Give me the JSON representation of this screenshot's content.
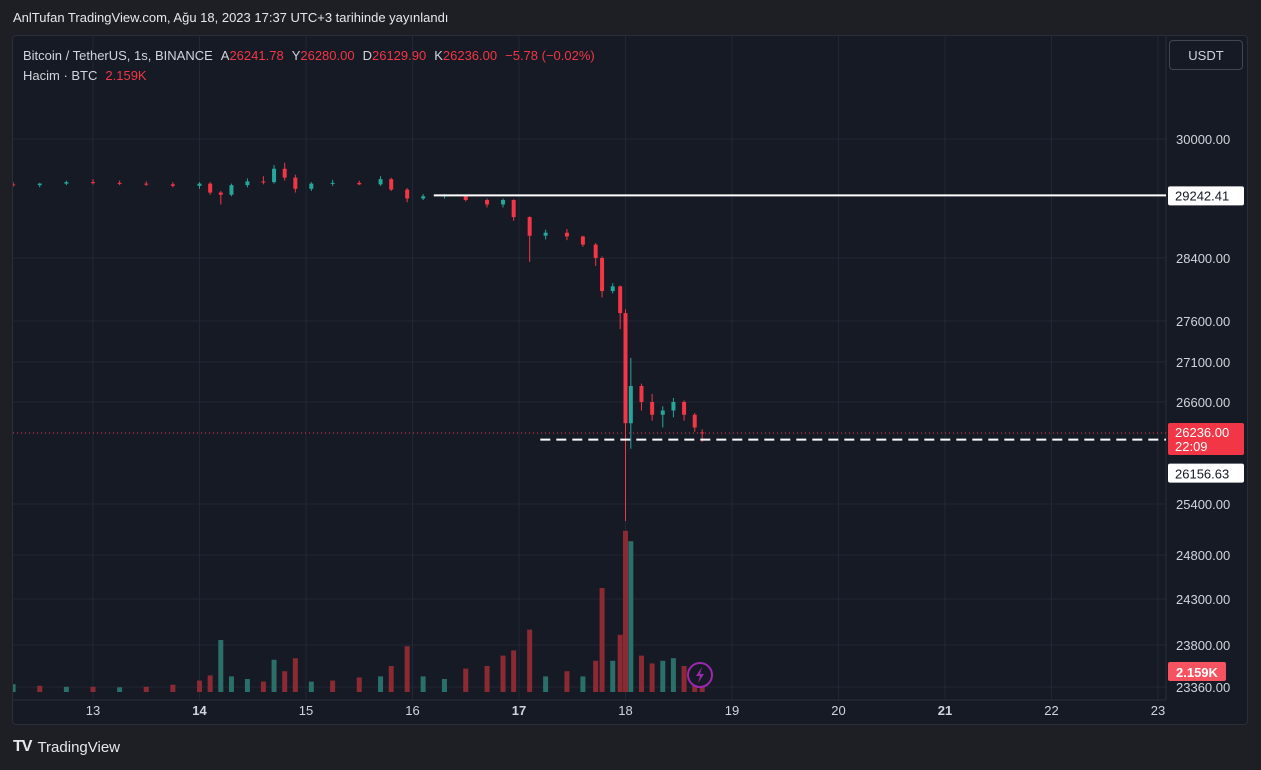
{
  "header": {
    "publish_line": "AnlTufan TradingView.com, Ağu 18, 2023 17:37 UTC+3 tarihinde yayınlandı"
  },
  "legend": {
    "symbol": "Bitcoin / TetherUS, 1s, BINANCE",
    "open_label": "A",
    "open_value": "26241.78",
    "high_label": "Y",
    "high_value": "26280.00",
    "low_label": "D",
    "low_value": "26129.90",
    "close_label": "K",
    "close_value": "26236.00",
    "change": "−5.78 (−0.02%)",
    "volume_label": "Hacim · BTC",
    "volume_value": "2.159K"
  },
  "toolbar": {
    "unit_label": "USDT"
  },
  "footer": {
    "brand": "TradingView",
    "brand_mark": "TV"
  },
  "colors": {
    "up": "#26a69a",
    "down": "#f23645",
    "vol_up": "#2a6f69",
    "vol_down": "#8b2a33",
    "grid": "#232735",
    "text": "#d1d4dc",
    "bg": "#161a25"
  },
  "chart_data": {
    "type": "candlestick",
    "x_ticks": [
      {
        "label": "13",
        "day": 13,
        "bold": false
      },
      {
        "label": "14",
        "day": 14,
        "bold": true
      },
      {
        "label": "15",
        "day": 15,
        "bold": false
      },
      {
        "label": "16",
        "day": 16,
        "bold": false
      },
      {
        "label": "17",
        "day": 17,
        "bold": true
      },
      {
        "label": "18",
        "day": 18,
        "bold": false
      },
      {
        "label": "19",
        "day": 19,
        "bold": false
      },
      {
        "label": "20",
        "day": 20,
        "bold": false
      },
      {
        "label": "21",
        "day": 21,
        "bold": true
      },
      {
        "label": "22",
        "day": 22,
        "bold": false
      },
      {
        "label": "23",
        "day": 23,
        "bold": false
      }
    ],
    "y_ticks": [
      "30000.00",
      "28400.00",
      "27600.00",
      "27100.00",
      "26600.00",
      "25400.00",
      "24800.00",
      "24300.00",
      "23800.00",
      "23360.00"
    ],
    "y_tick_values": [
      30000,
      28400,
      27600,
      27100,
      26600,
      25400,
      24800,
      24300,
      23800,
      23360
    ],
    "horizontal_line": {
      "value": 29242.41,
      "label": "29242.41",
      "from_day": 16.2
    },
    "dashed_line": {
      "value": 26156.63,
      "label": "26156.63",
      "from_day": 17.2
    },
    "last_price": {
      "value": 26236.0,
      "label": "26236.00",
      "countdown": "22:09"
    },
    "volume_last": {
      "label": "2.159K"
    },
    "candles": [
      {
        "d": 12.25,
        "o": 29390,
        "h": 29420,
        "l": 29360,
        "c": 29380
      },
      {
        "d": 12.5,
        "o": 29380,
        "h": 29410,
        "l": 29350,
        "c": 29400
      },
      {
        "d": 12.75,
        "o": 29400,
        "h": 29440,
        "l": 29380,
        "c": 29420
      },
      {
        "d": 13.0,
        "o": 29420,
        "h": 29460,
        "l": 29390,
        "c": 29410
      },
      {
        "d": 13.25,
        "o": 29410,
        "h": 29440,
        "l": 29380,
        "c": 29400
      },
      {
        "d": 13.5,
        "o": 29400,
        "h": 29430,
        "l": 29370,
        "c": 29390
      },
      {
        "d": 13.75,
        "o": 29390,
        "h": 29420,
        "l": 29350,
        "c": 29370
      },
      {
        "d": 14.0,
        "o": 29370,
        "h": 29420,
        "l": 29330,
        "c": 29400
      },
      {
        "d": 14.1,
        "o": 29400,
        "h": 29420,
        "l": 29250,
        "c": 29280
      },
      {
        "d": 14.2,
        "o": 29280,
        "h": 29300,
        "l": 29120,
        "c": 29250
      },
      {
        "d": 14.3,
        "o": 29250,
        "h": 29400,
        "l": 29230,
        "c": 29380
      },
      {
        "d": 14.45,
        "o": 29380,
        "h": 29470,
        "l": 29350,
        "c": 29430
      },
      {
        "d": 14.6,
        "o": 29430,
        "h": 29500,
        "l": 29390,
        "c": 29420
      },
      {
        "d": 14.7,
        "o": 29420,
        "h": 29650,
        "l": 29400,
        "c": 29600
      },
      {
        "d": 14.8,
        "o": 29600,
        "h": 29680,
        "l": 29440,
        "c": 29480
      },
      {
        "d": 14.9,
        "o": 29480,
        "h": 29520,
        "l": 29280,
        "c": 29330
      },
      {
        "d": 15.05,
        "o": 29330,
        "h": 29420,
        "l": 29300,
        "c": 29400
      },
      {
        "d": 15.25,
        "o": 29400,
        "h": 29450,
        "l": 29370,
        "c": 29410
      },
      {
        "d": 15.5,
        "o": 29410,
        "h": 29440,
        "l": 29380,
        "c": 29390
      },
      {
        "d": 15.7,
        "o": 29390,
        "h": 29500,
        "l": 29370,
        "c": 29460
      },
      {
        "d": 15.8,
        "o": 29460,
        "h": 29480,
        "l": 29300,
        "c": 29320
      },
      {
        "d": 15.95,
        "o": 29320,
        "h": 29340,
        "l": 29150,
        "c": 29200
      },
      {
        "d": 16.1,
        "o": 29200,
        "h": 29260,
        "l": 29180,
        "c": 29230
      },
      {
        "d": 16.3,
        "o": 29230,
        "h": 29260,
        "l": 29200,
        "c": 29240
      },
      {
        "d": 16.5,
        "o": 29240,
        "h": 29250,
        "l": 29160,
        "c": 29180
      },
      {
        "d": 16.7,
        "o": 29180,
        "h": 29200,
        "l": 29080,
        "c": 29120
      },
      {
        "d": 16.85,
        "o": 29120,
        "h": 29200,
        "l": 29080,
        "c": 29180
      },
      {
        "d": 16.95,
        "o": 29180,
        "h": 29190,
        "l": 28900,
        "c": 28950
      },
      {
        "d": 17.1,
        "o": 28950,
        "h": 28960,
        "l": 28350,
        "c": 28700
      },
      {
        "d": 17.25,
        "o": 28700,
        "h": 28780,
        "l": 28650,
        "c": 28740
      },
      {
        "d": 17.45,
        "o": 28740,
        "h": 28790,
        "l": 28640,
        "c": 28690
      },
      {
        "d": 17.6,
        "o": 28690,
        "h": 28700,
        "l": 28550,
        "c": 28580
      },
      {
        "d": 17.72,
        "o": 28580,
        "h": 28600,
        "l": 28300,
        "c": 28400
      },
      {
        "d": 17.78,
        "o": 28400,
        "h": 28420,
        "l": 27900,
        "c": 27980
      },
      {
        "d": 17.88,
        "o": 27980,
        "h": 28080,
        "l": 27950,
        "c": 28040
      },
      {
        "d": 17.95,
        "o": 28040,
        "h": 28050,
        "l": 27500,
        "c": 27700
      },
      {
        "d": 18.0,
        "o": 27700,
        "h": 27750,
        "l": 25200,
        "c": 26350
      },
      {
        "d": 18.05,
        "o": 26350,
        "h": 27150,
        "l": 26050,
        "c": 26800
      },
      {
        "d": 18.15,
        "o": 26800,
        "h": 26830,
        "l": 26500,
        "c": 26600
      },
      {
        "d": 18.25,
        "o": 26600,
        "h": 26700,
        "l": 26380,
        "c": 26450
      },
      {
        "d": 18.35,
        "o": 26450,
        "h": 26550,
        "l": 26300,
        "c": 26500
      },
      {
        "d": 18.45,
        "o": 26500,
        "h": 26650,
        "l": 26420,
        "c": 26600
      },
      {
        "d": 18.55,
        "o": 26600,
        "h": 26620,
        "l": 26380,
        "c": 26450
      },
      {
        "d": 18.65,
        "o": 26450,
        "h": 26470,
        "l": 26250,
        "c": 26300
      },
      {
        "d": 18.72,
        "o": 26241.78,
        "h": 26280,
        "l": 26129.9,
        "c": 26236
      }
    ],
    "volumes": [
      {
        "d": 12.25,
        "v": 0.15,
        "up": true
      },
      {
        "d": 12.5,
        "v": 0.12,
        "up": false
      },
      {
        "d": 12.75,
        "v": 0.1,
        "up": true
      },
      {
        "d": 13.0,
        "v": 0.1,
        "up": false
      },
      {
        "d": 13.25,
        "v": 0.09,
        "up": true
      },
      {
        "d": 13.5,
        "v": 0.1,
        "up": false
      },
      {
        "d": 13.75,
        "v": 0.14,
        "up": false
      },
      {
        "d": 14.0,
        "v": 0.22,
        "up": false
      },
      {
        "d": 14.1,
        "v": 0.32,
        "up": false
      },
      {
        "d": 14.2,
        "v": 1.0,
        "up": true
      },
      {
        "d": 14.3,
        "v": 0.3,
        "up": true
      },
      {
        "d": 14.45,
        "v": 0.25,
        "up": true
      },
      {
        "d": 14.6,
        "v": 0.2,
        "up": false
      },
      {
        "d": 14.7,
        "v": 0.62,
        "up": true
      },
      {
        "d": 14.8,
        "v": 0.4,
        "up": false
      },
      {
        "d": 14.9,
        "v": 0.65,
        "up": false
      },
      {
        "d": 15.05,
        "v": 0.2,
        "up": true
      },
      {
        "d": 15.25,
        "v": 0.22,
        "up": false
      },
      {
        "d": 15.5,
        "v": 0.28,
        "up": false
      },
      {
        "d": 15.7,
        "v": 0.3,
        "up": true
      },
      {
        "d": 15.8,
        "v": 0.5,
        "up": false
      },
      {
        "d": 15.95,
        "v": 0.88,
        "up": false
      },
      {
        "d": 16.1,
        "v": 0.3,
        "up": true
      },
      {
        "d": 16.3,
        "v": 0.25,
        "up": true
      },
      {
        "d": 16.5,
        "v": 0.45,
        "up": false
      },
      {
        "d": 16.7,
        "v": 0.5,
        "up": false
      },
      {
        "d": 16.85,
        "v": 0.7,
        "up": false
      },
      {
        "d": 16.95,
        "v": 0.8,
        "up": false
      },
      {
        "d": 17.1,
        "v": 1.2,
        "up": false
      },
      {
        "d": 17.25,
        "v": 0.3,
        "up": true
      },
      {
        "d": 17.45,
        "v": 0.4,
        "up": false
      },
      {
        "d": 17.6,
        "v": 0.3,
        "up": true
      },
      {
        "d": 17.72,
        "v": 0.6,
        "up": false
      },
      {
        "d": 17.78,
        "v": 2.0,
        "up": false
      },
      {
        "d": 17.88,
        "v": 0.6,
        "up": true
      },
      {
        "d": 17.95,
        "v": 1.1,
        "up": false
      },
      {
        "d": 18.0,
        "v": 3.1,
        "up": false
      },
      {
        "d": 18.05,
        "v": 2.9,
        "up": true
      },
      {
        "d": 18.15,
        "v": 0.7,
        "up": false
      },
      {
        "d": 18.25,
        "v": 0.55,
        "up": false
      },
      {
        "d": 18.35,
        "v": 0.6,
        "up": true
      },
      {
        "d": 18.45,
        "v": 0.65,
        "up": true
      },
      {
        "d": 18.55,
        "v": 0.5,
        "up": false
      },
      {
        "d": 18.65,
        "v": 0.45,
        "up": false
      },
      {
        "d": 18.72,
        "v": 0.3,
        "up": false
      }
    ]
  }
}
